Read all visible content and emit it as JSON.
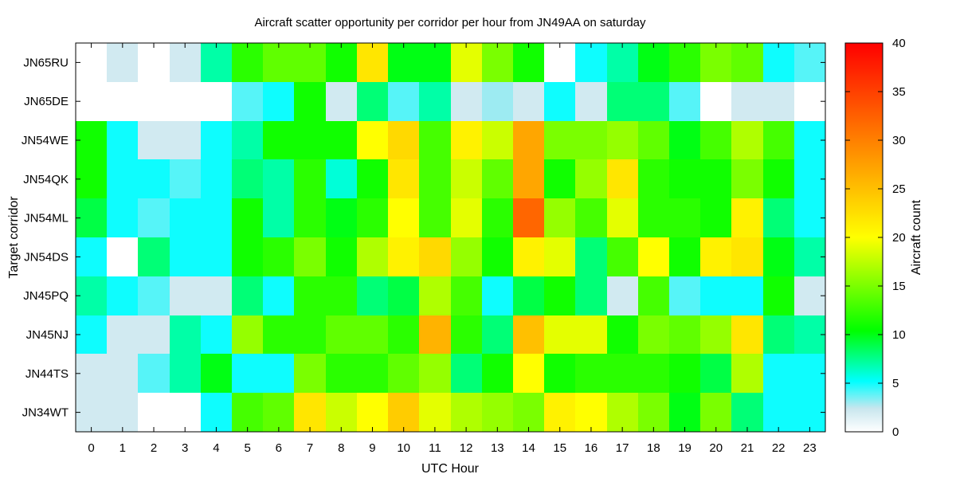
{
  "chart_data": {
    "type": "heatmap",
    "title": "Aircraft scatter opportunity per corridor per hour from JN49AA on saturday",
    "xlabel": "UTC Hour",
    "ylabel": "Target corridor",
    "x": [
      "0",
      "1",
      "2",
      "3",
      "4",
      "5",
      "6",
      "7",
      "8",
      "9",
      "10",
      "11",
      "12",
      "13",
      "14",
      "15",
      "16",
      "17",
      "18",
      "19",
      "20",
      "21",
      "22",
      "23"
    ],
    "y": [
      "JN65RU",
      "JN65DE",
      "JN54WE",
      "JN54QK",
      "JN54ML",
      "JN54DS",
      "JN45PQ",
      "JN45NJ",
      "JN44TS",
      "JN34WT"
    ],
    "values": [
      [
        0,
        2,
        0,
        2,
        7,
        12,
        14,
        14,
        11,
        22,
        10,
        10,
        19,
        15,
        11,
        0,
        5,
        7,
        10,
        12,
        15,
        14,
        5,
        4
      ],
      [
        0,
        0,
        0,
        0,
        0,
        4,
        5,
        11,
        2,
        8,
        4,
        7,
        2,
        3,
        2,
        5,
        2,
        8,
        8,
        4,
        0,
        2,
        2,
        0
      ],
      [
        11,
        5,
        2,
        2,
        5,
        7,
        11,
        11,
        11,
        20,
        23,
        13,
        21,
        18,
        27,
        15,
        15,
        16,
        14,
        10,
        13,
        17,
        13,
        5
      ],
      [
        11,
        5,
        5,
        4,
        5,
        8,
        7,
        12,
        6,
        11,
        22,
        13,
        18,
        14,
        27,
        11,
        16,
        22,
        12,
        11,
        11,
        15,
        11,
        5
      ],
      [
        9,
        5,
        4,
        5,
        5,
        11,
        7,
        12,
        10,
        12,
        20,
        13,
        19,
        12,
        32,
        16,
        13,
        19,
        12,
        12,
        11,
        21,
        8,
        5
      ],
      [
        5,
        0,
        8,
        5,
        5,
        11,
        12,
        15,
        11,
        17,
        21,
        23,
        16,
        11,
        21,
        19,
        8,
        13,
        20,
        11,
        21,
        22,
        10,
        7
      ],
      [
        7,
        5,
        4,
        2,
        2,
        8,
        5,
        12,
        12,
        8,
        9,
        17,
        13,
        5,
        9,
        11,
        8,
        2,
        13,
        4,
        5,
        5,
        11,
        2
      ],
      [
        5,
        2,
        2,
        7,
        5,
        16,
        12,
        12,
        14,
        14,
        12,
        26,
        12,
        8,
        25,
        19,
        19,
        11,
        15,
        14,
        16,
        22,
        8,
        7
      ],
      [
        2,
        2,
        4,
        7,
        10,
        5,
        5,
        15,
        12,
        12,
        14,
        16,
        8,
        11,
        20,
        11,
        12,
        12,
        12,
        11,
        9,
        17,
        5,
        5
      ],
      [
        2,
        2,
        0,
        0,
        5,
        13,
        14,
        22,
        18,
        20,
        24,
        19,
        17,
        16,
        15,
        21,
        20,
        17,
        15,
        10,
        15,
        8,
        5,
        5
      ]
    ],
    "colorbar": {
      "label": "Aircraft count",
      "range": [
        0,
        40
      ],
      "ticks": [
        0,
        5,
        10,
        15,
        20,
        25,
        30,
        35,
        40
      ]
    }
  }
}
